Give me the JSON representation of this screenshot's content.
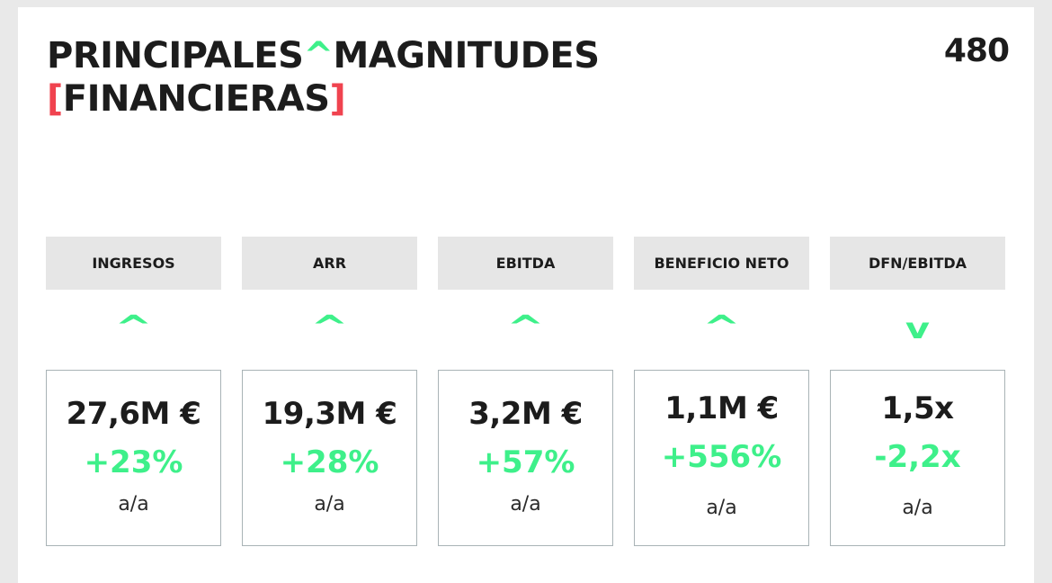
{
  "title": {
    "line1_part1": "PRINCIPALES",
    "caret": "^",
    "line1_part2": "MAGNITUDES",
    "bracket_open": "[",
    "line2": "FINANCIERAS",
    "bracket_close": "]"
  },
  "page_number": "480",
  "accent_colors": {
    "positive": "#3ef08a",
    "bracket": "#f0434f"
  },
  "metrics": [
    {
      "label": "INGRESOS",
      "trend_icon": "up-caret",
      "trend_symbol": "^",
      "value": "27,6M €",
      "change": "+23%",
      "unit": "a/a"
    },
    {
      "label": "ARR",
      "trend_icon": "up-caret",
      "trend_symbol": "^",
      "value": "19,3M €",
      "change": "+28%",
      "unit": "a/a"
    },
    {
      "label": "EBITDA",
      "trend_icon": "up-caret",
      "trend_symbol": "^",
      "value": "3,2M €",
      "change": "+57%",
      "unit": "a/a"
    },
    {
      "label": "BENEFICIO NETO",
      "trend_icon": "up-caret",
      "trend_symbol": "^",
      "value": "1,1M €",
      "change": "+556%",
      "unit": "a/a"
    },
    {
      "label": "DFN/EBITDA",
      "trend_icon": "down-caret",
      "trend_symbol": "v",
      "value": "1,5x",
      "change": "-2,2x",
      "unit": "a/a"
    }
  ]
}
